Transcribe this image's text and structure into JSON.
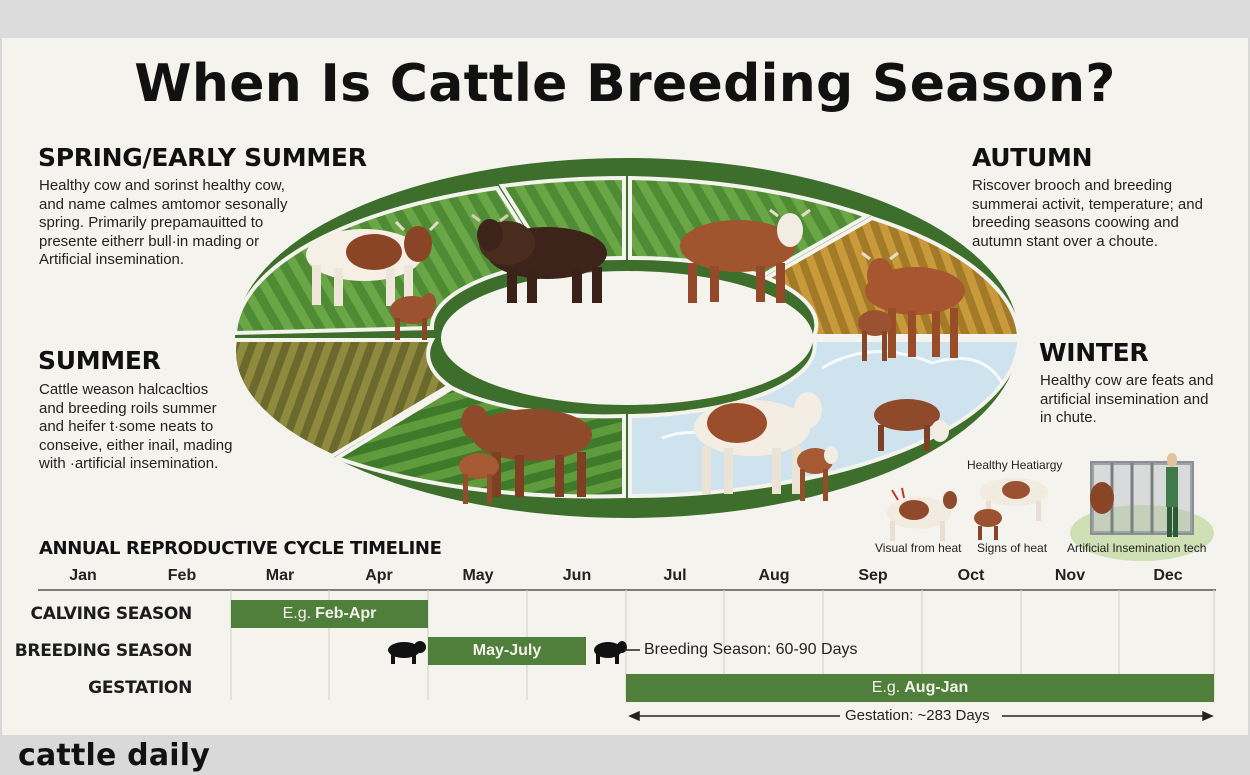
{
  "title": "When Is Cattle Breeding Season?",
  "brand": "cattle daily",
  "seasons": {
    "spring": {
      "heading": "SPRING/EARLY SUMMER",
      "text": "Healthy cow and sorinst healthy cow,\nand name calmes amtomor sesonally\nspring. Primarily prepamauitted to\npresente eitherr bull·in mading or\nArtificial insemination."
    },
    "summer": {
      "heading": "SUMMER",
      "text": "Cattle weason halcacltios\nand breeding roils summer\nand heifer t·some neats to\nconseive, either inail, mading\nwith ·artificial insemination."
    },
    "autumn": {
      "heading": "AUTUMN",
      "text": "Riscover brooch and breeding\nsummerai activit, temperature; and\nbreeding seasons coowing and\nautumn stant over a choute."
    },
    "winter": {
      "heading": "WINTER",
      "text": "Healthy cow are feats and\nartificial insemination and\nin chute."
    }
  },
  "captions": {
    "healthy": "Healthy Heatiargy",
    "visual": "Visual from heat",
    "signs": "Signs of heat",
    "ai_tech": "Artificial Insemination tech"
  },
  "timeline": {
    "heading": "ANNUAL REPRODUCTIVE CYCLE TIMELINE",
    "months": [
      "Jan",
      "Feb",
      "Mar",
      "Apr",
      "May",
      "Jun",
      "Jul",
      "Aug",
      "Sep",
      "Oct",
      "Nov",
      "Dec"
    ],
    "rows": {
      "calving": {
        "label": "CALVING SEASON",
        "bar_prefix": "E.g.",
        "bar_value": "Feb-Apr"
      },
      "breeding": {
        "label": "BREEDING SEASON",
        "bar_value": "May-July",
        "note": "Breeding Season: 60-90 Days"
      },
      "gestation": {
        "label": "GESTATION",
        "bar_prefix": "E.g.",
        "bar_value": "Aug-Jan",
        "note": "Gestation: ~283 Days"
      }
    }
  },
  "colors": {
    "grass_green": "#5e9a3c",
    "dark_green": "#4f7f3a",
    "autumn_brown": "#b8892f",
    "winter_blue": "#cfe3ee",
    "summer_brown": "#8d7a3a"
  },
  "icons": [
    "cow-icon",
    "bull-icon",
    "calf-icon",
    "chute-icon",
    "bull-silhouette-icon"
  ]
}
